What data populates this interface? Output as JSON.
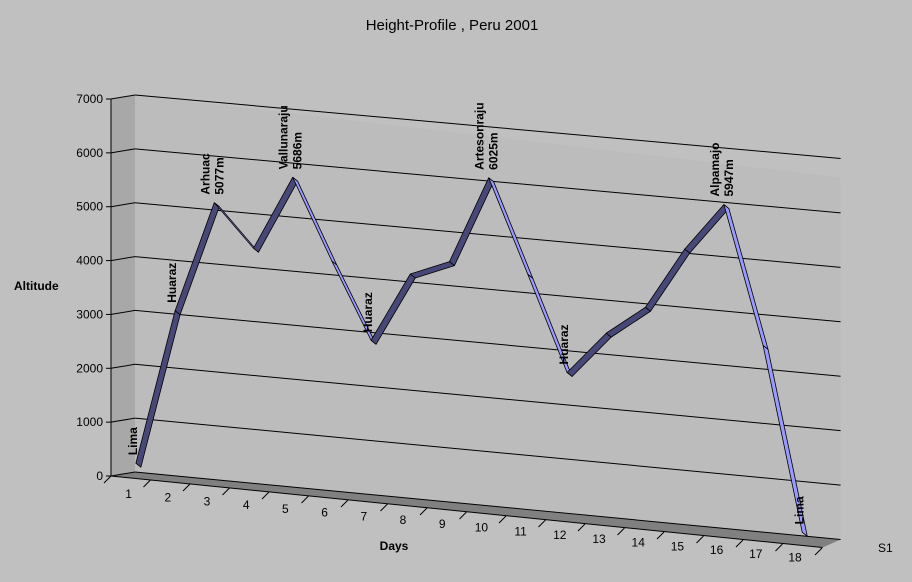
{
  "chart_data": {
    "type": "line",
    "style": "3d-ribbon",
    "title": "Height-Profile , Peru 2001",
    "xlabel": "Days",
    "ylabel": "Altitude",
    "ylim": [
      0,
      7000
    ],
    "yticks": [
      0,
      1000,
      2000,
      3000,
      4000,
      5000,
      6000,
      7000
    ],
    "grid": true,
    "legend_position": "bottom-right",
    "categories": [
      "1",
      "2",
      "3",
      "4",
      "5",
      "6",
      "7",
      "8",
      "9",
      "10",
      "11",
      "12",
      "13",
      "14",
      "15",
      "16",
      "17",
      "18"
    ],
    "series": [
      {
        "name": "S1",
        "color_up": "#484878",
        "color_down": "#9999ff",
        "values": [
          100,
          3000,
          5077,
          4300,
          5686,
          4200,
          2800,
          4100,
          4400,
          6025,
          4300,
          2550,
          3350,
          3900,
          5050,
          5947,
          3400,
          0
        ]
      }
    ],
    "annotations": [
      {
        "point": 0,
        "lines": [
          "Lima"
        ]
      },
      {
        "point": 1,
        "lines": [
          "Huaraz"
        ]
      },
      {
        "point": 2,
        "lines": [
          "Arhuac",
          "5077m"
        ]
      },
      {
        "point": 4,
        "lines": [
          "Vallunaraju",
          "5686m"
        ]
      },
      {
        "point": 6,
        "lines": [
          "Huaraz"
        ]
      },
      {
        "point": 9,
        "lines": [
          "Artesonraju",
          "6025m"
        ]
      },
      {
        "point": 11,
        "lines": [
          "Huaraz"
        ]
      },
      {
        "point": 15,
        "lines": [
          "Alpamajo",
          "5947m"
        ]
      },
      {
        "point": 17,
        "lines": [
          "Lima"
        ]
      }
    ],
    "colors": {
      "background": "#c0c0c0",
      "back_wall": "#bcbcbc",
      "side_wall": "#a8a8a8",
      "floor": "#808080",
      "floor_edge": "#9a9a9a"
    }
  }
}
